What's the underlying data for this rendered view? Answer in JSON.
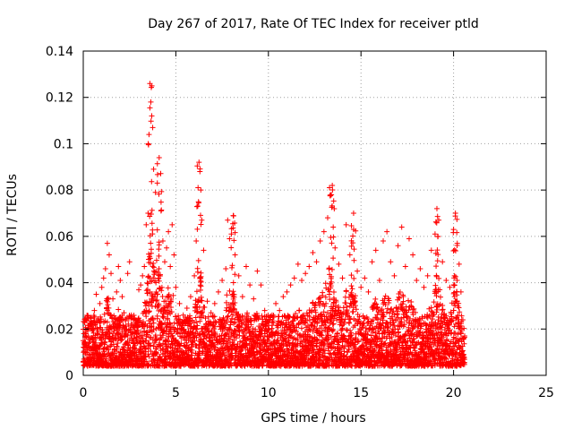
{
  "chart_data": {
    "type": "scatter",
    "title": "Day 267 of 2017, Rate Of TEC Index for receiver ptld",
    "xlabel": "GPS time / hours",
    "ylabel": "ROTI / TECUs",
    "xlim": [
      0,
      25
    ],
    "ylim": [
      0,
      0.14
    ],
    "x_ticks": [
      "0",
      "5",
      "10",
      "15",
      "20",
      "25"
    ],
    "y_ticks": [
      "0",
      "0.02",
      "0.04",
      "0.06",
      "0.08",
      "0.1",
      "0.12",
      "0.14"
    ],
    "grid": true,
    "marker": "plus",
    "color": "#ff0000",
    "series": [
      {
        "values_description": "ROTI samples from 0 to ~20.6 hours",
        "points": [
          [
            0.1,
            0.018
          ],
          [
            0.2,
            0.024
          ],
          [
            0.3,
            0.012
          ],
          [
            0.4,
            0.021
          ],
          [
            0.5,
            0.016
          ],
          [
            0.6,
            0.028
          ],
          [
            0.7,
            0.035
          ],
          [
            0.8,
            0.019
          ],
          [
            0.9,
            0.031
          ],
          [
            1.0,
            0.038
          ],
          [
            1.1,
            0.042
          ],
          [
            1.2,
            0.046
          ],
          [
            1.3,
            0.057
          ],
          [
            1.4,
            0.052
          ],
          [
            1.5,
            0.044
          ],
          [
            1.6,
            0.033
          ],
          [
            1.7,
            0.022
          ],
          [
            1.8,
            0.036
          ],
          [
            1.9,
            0.047
          ],
          [
            2.0,
            0.041
          ],
          [
            2.1,
            0.034
          ],
          [
            2.2,
            0.027
          ],
          [
            2.3,
            0.019
          ],
          [
            2.4,
            0.044
          ],
          [
            2.5,
            0.049
          ],
          [
            2.6,
            0.026
          ],
          [
            2.7,
            0.018
          ],
          [
            2.8,
            0.022
          ],
          [
            2.9,
            0.015
          ],
          [
            3.0,
            0.037
          ],
          [
            3.1,
            0.039
          ],
          [
            3.2,
            0.043
          ],
          [
            3.3,
            0.047
          ],
          [
            3.4,
            0.065
          ],
          [
            3.5,
            0.07
          ],
          [
            3.55,
            0.104
          ],
          [
            3.6,
            0.126
          ],
          [
            3.65,
            0.118
          ],
          [
            3.7,
            0.112
          ],
          [
            3.75,
            0.107
          ],
          [
            3.8,
            0.089
          ],
          [
            3.9,
            0.079
          ],
          [
            4.0,
            0.083
          ],
          [
            4.1,
            0.094
          ],
          [
            4.2,
            0.071
          ],
          [
            4.3,
            0.058
          ],
          [
            4.4,
            0.049
          ],
          [
            4.5,
            0.055
          ],
          [
            4.6,
            0.062
          ],
          [
            4.7,
            0.047
          ],
          [
            4.8,
            0.065
          ],
          [
            4.9,
            0.052
          ],
          [
            5.0,
            0.038
          ],
          [
            5.2,
            0.031
          ],
          [
            5.4,
            0.026
          ],
          [
            5.6,
            0.029
          ],
          [
            5.8,
            0.034
          ],
          [
            6.0,
            0.043
          ],
          [
            6.1,
            0.058
          ],
          [
            6.2,
            0.081
          ],
          [
            6.25,
            0.092
          ],
          [
            6.3,
            0.088
          ],
          [
            6.35,
            0.08
          ],
          [
            6.4,
            0.067
          ],
          [
            6.5,
            0.054
          ],
          [
            6.7,
            0.032
          ],
          [
            6.9,
            0.027
          ],
          [
            7.1,
            0.031
          ],
          [
            7.3,
            0.036
          ],
          [
            7.5,
            0.041
          ],
          [
            7.7,
            0.046
          ],
          [
            7.8,
            0.067
          ],
          [
            7.9,
            0.059
          ],
          [
            8.0,
            0.061
          ],
          [
            8.1,
            0.069
          ],
          [
            8.2,
            0.052
          ],
          [
            8.4,
            0.043
          ],
          [
            8.6,
            0.034
          ],
          [
            8.8,
            0.047
          ],
          [
            9.0,
            0.039
          ],
          [
            9.2,
            0.033
          ],
          [
            9.4,
            0.045
          ],
          [
            9.6,
            0.039
          ],
          [
            9.8,
            0.028
          ],
          [
            10.0,
            0.024
          ],
          [
            10.2,
            0.026
          ],
          [
            10.4,
            0.031
          ],
          [
            10.6,
            0.028
          ],
          [
            10.8,
            0.034
          ],
          [
            11.0,
            0.036
          ],
          [
            11.2,
            0.039
          ],
          [
            11.4,
            0.042
          ],
          [
            11.6,
            0.048
          ],
          [
            11.8,
            0.041
          ],
          [
            12.0,
            0.044
          ],
          [
            12.2,
            0.047
          ],
          [
            12.4,
            0.053
          ],
          [
            12.6,
            0.049
          ],
          [
            12.8,
            0.058
          ],
          [
            13.0,
            0.062
          ],
          [
            13.2,
            0.068
          ],
          [
            13.3,
            0.081
          ],
          [
            13.4,
            0.078
          ],
          [
            13.45,
            0.082
          ],
          [
            13.5,
            0.064
          ],
          [
            13.6,
            0.055
          ],
          [
            13.8,
            0.048
          ],
          [
            14.0,
            0.042
          ],
          [
            14.2,
            0.065
          ],
          [
            14.4,
            0.052
          ],
          [
            14.6,
            0.07
          ],
          [
            14.8,
            0.045
          ],
          [
            15.0,
            0.038
          ],
          [
            15.2,
            0.042
          ],
          [
            15.4,
            0.036
          ],
          [
            15.6,
            0.049
          ],
          [
            15.8,
            0.054
          ],
          [
            16.0,
            0.041
          ],
          [
            16.2,
            0.058
          ],
          [
            16.4,
            0.062
          ],
          [
            16.6,
            0.049
          ],
          [
            16.8,
            0.043
          ],
          [
            17.0,
            0.056
          ],
          [
            17.2,
            0.064
          ],
          [
            17.4,
            0.047
          ],
          [
            17.6,
            0.059
          ],
          [
            17.8,
            0.052
          ],
          [
            18.0,
            0.041
          ],
          [
            18.2,
            0.046
          ],
          [
            18.4,
            0.038
          ],
          [
            18.6,
            0.043
          ],
          [
            18.8,
            0.054
          ],
          [
            19.0,
            0.061
          ],
          [
            19.1,
            0.072
          ],
          [
            19.2,
            0.067
          ],
          [
            19.4,
            0.049
          ],
          [
            19.6,
            0.041
          ],
          [
            19.8,
            0.038
          ],
          [
            20.0,
            0.063
          ],
          [
            20.1,
            0.07
          ],
          [
            20.2,
            0.057
          ],
          [
            20.3,
            0.048
          ],
          [
            20.4,
            0.036
          ],
          [
            20.5,
            0.024
          ],
          [
            20.6,
            0.017
          ]
        ]
      }
    ]
  }
}
